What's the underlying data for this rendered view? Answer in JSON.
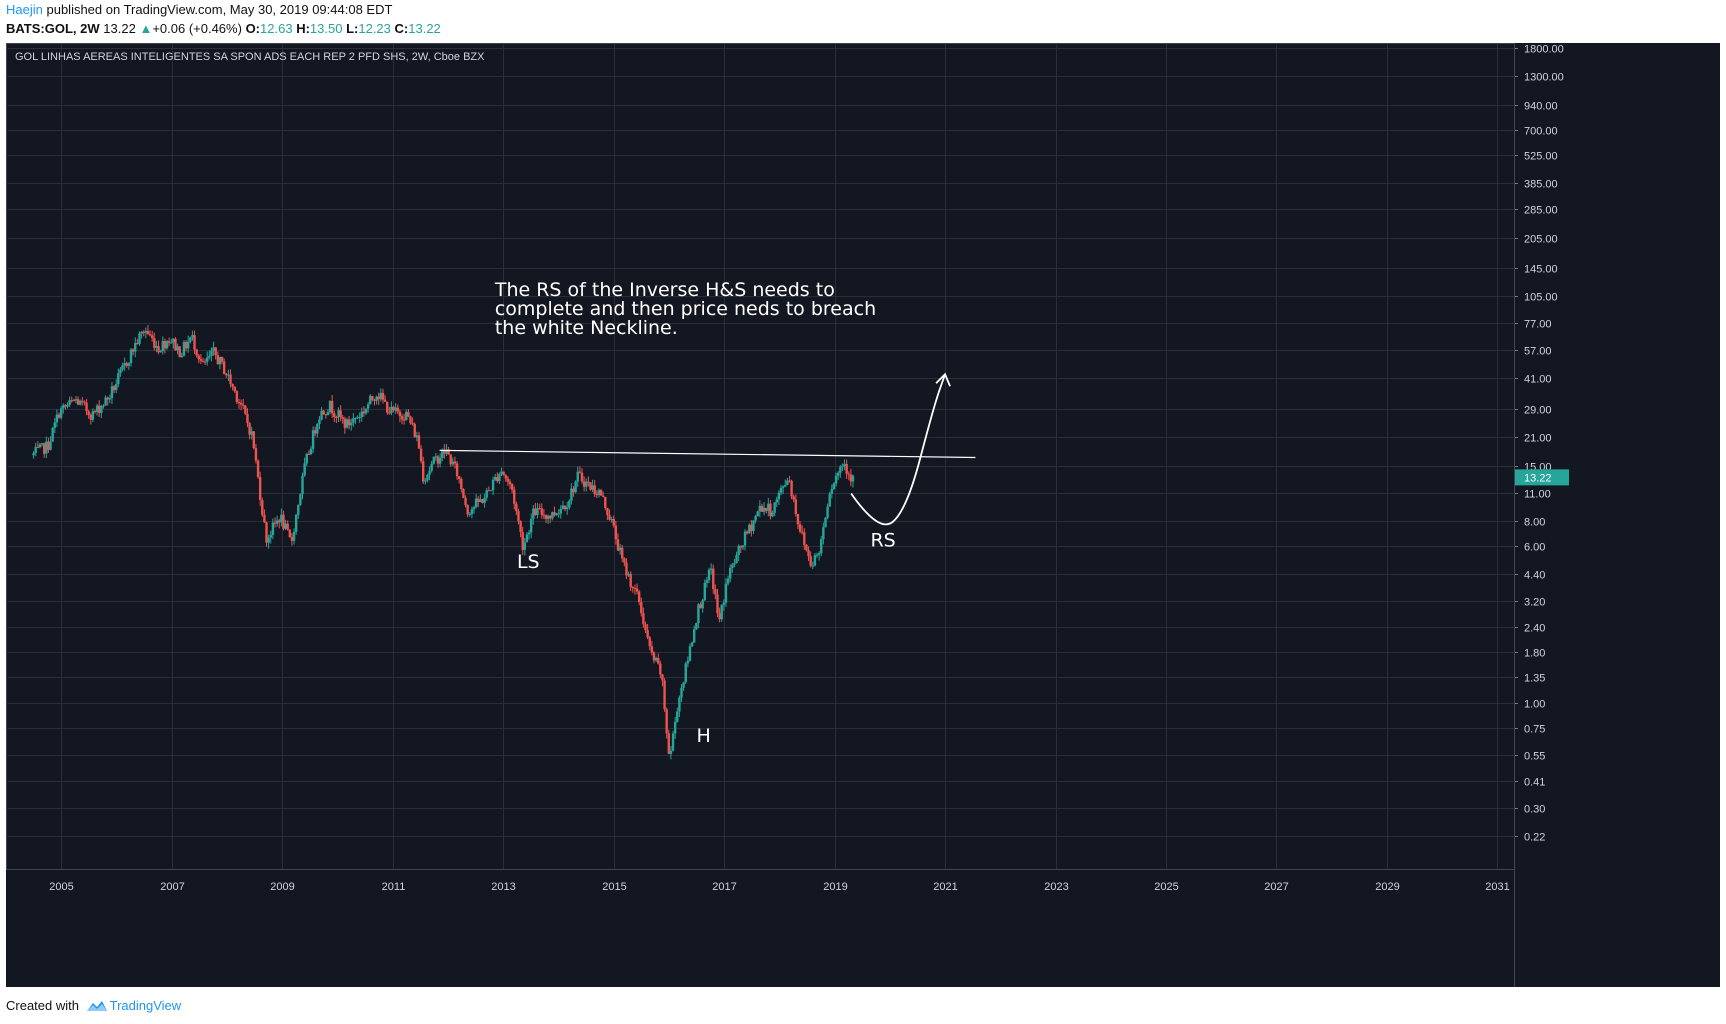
{
  "header": {
    "author": "Haejin",
    "published": "published on TradingView.com, May 30, 2019 09:44:08 EDT",
    "symbol": "BATS:GOL, 2W",
    "last": "13.22",
    "change": "+0.06 (+0.46%)",
    "o_label": "O:",
    "o_value": "12.63",
    "h_label": "H:",
    "h_value": "13.50",
    "l_label": "L:",
    "l_value": "12.23",
    "c_label": "C:",
    "c_value": "13.22"
  },
  "footer": {
    "created_with": "Created with",
    "brand": "TradingView"
  },
  "colors": {
    "background": "#131722",
    "grid": "#2a2e39",
    "up": "#26a69a",
    "down": "#ef5350",
    "annotation": "#ffffff",
    "price_badge": "#26a69a"
  },
  "chart_data": {
    "type": "candlestick",
    "title": "GOL LINHAS AEREAS INTELIGENTES SA SPON ADS EACH REP 2 PFD SHS, 2W, Cboe BZX",
    "y_scale": "log",
    "ylim": [
      0.15,
      1900
    ],
    "xlim": [
      2004.0,
      2031.3
    ],
    "x_ticks": [
      "2005",
      "2007",
      "2009",
      "2011",
      "2013",
      "2015",
      "2017",
      "2019",
      "2021",
      "2023",
      "2025",
      "2027",
      "2029",
      "2031"
    ],
    "y_ticks": [
      "1800.00",
      "1300.00",
      "940.00",
      "700.00",
      "525.00",
      "385.00",
      "285.00",
      "205.00",
      "145.00",
      "105.00",
      "77.00",
      "57.00",
      "41.00",
      "29.00",
      "21.00",
      "15.00",
      "11.00",
      "8.00",
      "6.00",
      "4.40",
      "3.20",
      "2.40",
      "1.80",
      "1.35",
      "1.00",
      "0.75",
      "0.55",
      "0.41",
      "0.30",
      "0.22"
    ],
    "current_price": "13.22",
    "price_path": [
      [
        2004.5,
        17.0
      ],
      [
        2004.8,
        19.0
      ],
      [
        2005.0,
        28.0
      ],
      [
        2005.3,
        32.0
      ],
      [
        2005.6,
        27.0
      ],
      [
        2005.9,
        33.0
      ],
      [
        2006.2,
        48.0
      ],
      [
        2006.4,
        62.0
      ],
      [
        2006.55,
        72.0
      ],
      [
        2006.8,
        58.0
      ],
      [
        2007.0,
        65.0
      ],
      [
        2007.2,
        55.0
      ],
      [
        2007.4,
        66.0
      ],
      [
        2007.6,
        47.0
      ],
      [
        2007.8,
        55.0
      ],
      [
        2008.0,
        45.0
      ],
      [
        2008.3,
        30.0
      ],
      [
        2008.5,
        21.0
      ],
      [
        2008.75,
        6.5
      ],
      [
        2009.0,
        8.5
      ],
      [
        2009.2,
        6.2
      ],
      [
        2009.45,
        15.0
      ],
      [
        2009.7,
        27.0
      ],
      [
        2009.9,
        30.0
      ],
      [
        2010.2,
        24.0
      ],
      [
        2010.5,
        28.0
      ],
      [
        2010.75,
        35.0
      ],
      [
        2011.0,
        28.0
      ],
      [
        2011.3,
        27.0
      ],
      [
        2011.5,
        20.0
      ],
      [
        2011.6,
        13.0
      ],
      [
        2011.8,
        16.0
      ],
      [
        2012.0,
        18.0
      ],
      [
        2012.2,
        14.0
      ],
      [
        2012.4,
        9.0
      ],
      [
        2012.7,
        10.5
      ],
      [
        2013.0,
        14.5
      ],
      [
        2013.2,
        11.5
      ],
      [
        2013.4,
        6.0
      ],
      [
        2013.6,
        9.0
      ],
      [
        2013.9,
        8.5
      ],
      [
        2014.2,
        10.0
      ],
      [
        2014.4,
        13.5
      ],
      [
        2014.6,
        12.0
      ],
      [
        2014.8,
        11.0
      ],
      [
        2015.0,
        8.0
      ],
      [
        2015.2,
        5.0
      ],
      [
        2015.5,
        3.2
      ],
      [
        2015.7,
        1.8
      ],
      [
        2015.9,
        1.4
      ],
      [
        2016.05,
        0.52
      ],
      [
        2016.2,
        1.0
      ],
      [
        2016.35,
        1.5
      ],
      [
        2016.55,
        2.8
      ],
      [
        2016.8,
        4.6
      ],
      [
        2016.95,
        2.5
      ],
      [
        2017.1,
        4.2
      ],
      [
        2017.4,
        6.5
      ],
      [
        2017.7,
        9.5
      ],
      [
        2017.9,
        9.0
      ],
      [
        2018.2,
        13.5
      ],
      [
        2018.4,
        7.5
      ],
      [
        2018.6,
        5.0
      ],
      [
        2018.75,
        5.5
      ],
      [
        2018.95,
        11.5
      ],
      [
        2019.2,
        16.0
      ],
      [
        2019.35,
        13.0
      ]
    ],
    "annotations": [
      {
        "type": "text",
        "text": "The RS of the Inverse H&S needs to\ncomplete and then price neds to breach\nthe white Neckline.",
        "x": 2012.85,
        "y": 105
      },
      {
        "type": "text",
        "text": "LS",
        "x": 2013.25,
        "y": 4.7
      },
      {
        "type": "text",
        "text": "H",
        "x": 2016.5,
        "y": 0.64
      },
      {
        "type": "text",
        "text": "RS",
        "x": 2019.65,
        "y": 6.0
      },
      {
        "type": "neckline",
        "from": [
          2011.85,
          18.0
        ],
        "to": [
          2021.55,
          16.6
        ]
      },
      {
        "type": "projection-arrow",
        "points": [
          [
            2019.3,
            11.0
          ],
          [
            2019.8,
            7.0
          ],
          [
            2020.3,
            9.0
          ],
          [
            2020.8,
            30.0
          ],
          [
            2021.0,
            43.0
          ]
        ]
      }
    ]
  }
}
